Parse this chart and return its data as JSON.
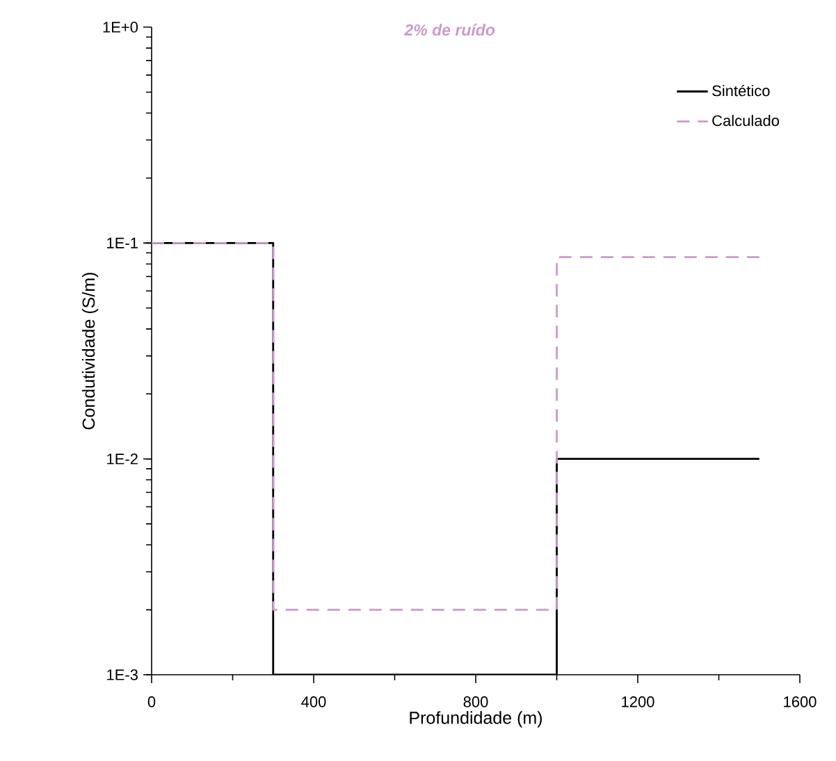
{
  "chart_data": {
    "type": "step",
    "title": "2% de ruído",
    "xlabel": "Profundidade (m)",
    "ylabel": "Condutividade (S/m)",
    "log": "y",
    "legend": "top right",
    "xlim": [
      0,
      1600
    ],
    "ylim": [
      0.001,
      1
    ],
    "xticks": [
      0,
      400,
      800,
      1200,
      1600
    ],
    "yticks": [
      {
        "value": 0.001,
        "label": "1E-3"
      },
      {
        "value": 0.01,
        "label": "1E-2"
      },
      {
        "value": 0.1,
        "label": "1E-1"
      },
      {
        "value": 1,
        "label": "1E+0"
      }
    ],
    "series": [
      {
        "name": "Sintético",
        "color": "#000000",
        "line_style": "solid",
        "x": [
          0,
          300,
          1000,
          1500
        ],
        "values": [
          0.1,
          0.001,
          0.01,
          0.01
        ]
      },
      {
        "name": "Calculado",
        "color": "#cc99cc",
        "line_style": "dashed",
        "x": [
          0,
          300,
          1000,
          1500
        ],
        "values": [
          0.1,
          0.002,
          0.086,
          0.086
        ]
      }
    ]
  }
}
